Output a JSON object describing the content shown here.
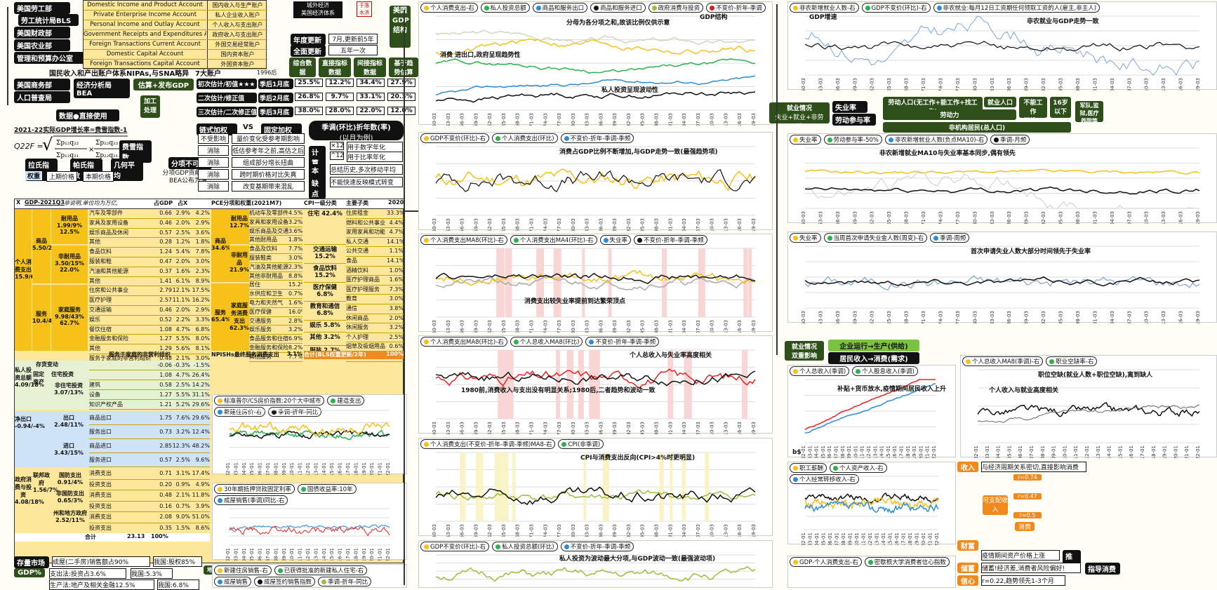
{
  "left_top": {
    "nav": [
      "美国劳工部",
      "劳工统计局BLS",
      "美国财政部",
      "美国农业部",
      "管理和预算办公室",
      "美国商务部",
      "经济分析局BEA",
      "人口普查局"
    ],
    "accounts_en": [
      "Domestic Income and Product Account",
      "Private Enterprise Income Account",
      "Personal Income and Outlay Account",
      "Government Receipts and Expenditures Account",
      "Foreign Transactions Current Account",
      "Domestic Capital Account",
      "Foreign Transactions Capital Account"
    ],
    "accounts_cn": [
      "国内收入与生产账户",
      "私人企业收入账户",
      "个人收入与支出账户",
      "政府收入与支出账户",
      "外国交易经常账户",
      "国内资本账户",
      "外国资本账户"
    ],
    "city_econ": "城外经济",
    "us_econ": "美国经济体系",
    "stamp": "于落水济",
    "nipa_label": "国民收入和产出账户体系NIPAs,与SNA略异",
    "seven_acct": "7大账户",
    "year1996": "1996后",
    "gdp_struct": "美国GDP结构",
    "annual_update": "年度更新",
    "annual_update_v": "7月,更新前5年",
    "full_update": "全面更新",
    "full_update_v": "五年一次",
    "cols": [
      "综合数据",
      "直接指标数据",
      "间接指标数据",
      "基于趋势估算数据"
    ],
    "estimate": "估算+发布GDP",
    "rows": [
      {
        "name": "初次估计/初值★★★",
        "time": "季后1月底",
        "v": [
          "25.5%",
          "12.2%",
          "34.4%",
          "27.9%"
        ]
      },
      {
        "name": "二次估计/修正值",
        "time": "季后2月底",
        "v": [
          "26.8%",
          "9.7%",
          "33.1%",
          "20.3%"
        ]
      },
      {
        "name": "三次估计/二次修正值",
        "time": "季后3月底",
        "v": [
          "38.0%",
          "28.0%",
          "22.0%",
          "12.0%"
        ]
      }
    ],
    "data_use": "数据●直接使用",
    "process": "加工处理"
  },
  "left_mid": {
    "formula_title": "2021-22实际GDP增长率=费雪指数-1",
    "formula_lhs": "Q22F =",
    "fisher": "费雪指数",
    "laspeyres": "拉氏指数",
    "paasche": "帕氏指数",
    "geo": "几何平均",
    "weights": "权重",
    "prev_price": "上期价格",
    "this_price": "本期价格",
    "chain": "链式加权",
    "vs": "VS",
    "fixed": "固定加权",
    "not_add": "分项不可加",
    "contrib": "分项GDP贡献率以BEA公布为准",
    "compare": [
      [
        "不受影响",
        "量价变化受参考期影响"
      ],
      [
        "消除",
        "低估参考年之前,高估之后"
      ],
      [
        "消除",
        "组成部分增长扭曲"
      ],
      [
        "消除",
        "跨时期价格对比失真"
      ],
      [
        "消除",
        "改变基期带来混乱"
      ]
    ],
    "seasonal": "季调(环比)折年数(率)",
    "seasonal_sub": "(以月为例)",
    "calc": "计算",
    "x12": "×12",
    "x12_v": "用于数字年化",
    "p12": "^12",
    "p12_v": "用于比率年化",
    "essence": "本质",
    "essence_v": "总结历史,多次移动平均",
    "defect": "缺点",
    "defect_v": "不能快速反映模式转变"
  },
  "left_table": {
    "hdr_x": "X",
    "hdr_gdp": "GDP-2021Q3",
    "hdr_note": "非说明,单位均为万亿,",
    "hdr_gdp_pct": "占GDP",
    "hdr_x_pct": "占X",
    "pce_hdr": "PCE分项和权重(2021M7)",
    "cpi_hdr": "CPI一级分类",
    "cpi_hdr2": "主要子类",
    "year": "2020",
    "consumption": "个人消费支出 15.9/69%",
    "goods": "商品 5.50/24%",
    "durable": "耐用品 1.99/9% 12.5%",
    "nondurable": "非耐用品 3.50/15% 22.0%",
    "services": "服务 10.4/45%",
    "household": "家庭服务 9.98/43% 62.7%",
    "nonprofit": "服务于家庭的非营利组织",
    "private_inv": "私人投资总额 4.09/18%",
    "fixed_inv": "固定资产",
    "inventory": "存货变动",
    "resid": "住宅投资",
    "nonresid": "非住宅投资 3.07/13%",
    "net_export": "净出口 -0.94/-4%",
    "export": "出口 2.48/11%",
    "import": "进口 3.43/15%",
    "gov": "政府消费与投资 4.08/18%",
    "federal": "联邦政府 1.56/7%",
    "defense": "国防支出 0.91/4%",
    "nondefense": "非国防支出 0.65/3%",
    "state": "州和地方政府 2.52/11%",
    "total": "合计",
    "total_v": "23.13",
    "total_pct": "100%",
    "items": [
      [
        "汽车及零部件",
        "0.66",
        "2.9%",
        "4.2%"
      ],
      [
        "家具及家用设备",
        "0.46",
        "2.0%",
        "2.9%"
      ],
      [
        "娱乐商品及休闲",
        "0.57",
        "2.5%",
        "3.6%"
      ],
      [
        "其他",
        "0.28",
        "1.2%",
        "1.8%"
      ],
      [
        "食品饮料",
        "1.24",
        "5.4%",
        "7.8%"
      ],
      [
        "服装和鞋",
        "0.47",
        "2.0%",
        "3.0%"
      ],
      [
        "汽油和其他能源",
        "0.37",
        "1.6%",
        "2.3%"
      ],
      [
        "其他",
        "1.41",
        "6.1%",
        "8.9%"
      ],
      [
        "住房和公共事业",
        "2.79",
        "12.1%",
        "17.5%"
      ],
      [
        "医疗护理",
        "2.57",
        "11.1%",
        "16.2%"
      ],
      [
        "交通运输",
        "0.46",
        "2.0%",
        "2.9%"
      ],
      [
        "娱乐",
        "0.52",
        "2.2%",
        "3.3%"
      ],
      [
        "餐饮住宿",
        "1.08",
        "4.7%",
        "6.8%"
      ],
      [
        "金融服务和保险",
        "1.27",
        "5.5%",
        "8.0%"
      ],
      [
        "其他",
        "1.29",
        "5.6%",
        "8.1%"
      ],
      [
        "服务于家庭的非营利组织",
        "0.48",
        "2.1%",
        "3.0%"
      ]
    ],
    "pce_items": [
      [
        "机动车及零部件",
        "4.5%"
      ],
      [
        "家具和家用设备",
        "3.2%"
      ],
      [
        "娱乐商品及交通工具",
        "3.6%"
      ],
      [
        "其他耐用品",
        "1.8%"
      ],
      [
        "食品及饮料",
        "7.7%"
      ],
      [
        "服装鞋类",
        "3.0%"
      ],
      [
        "汽油及其他能源",
        "2.3%"
      ],
      [
        "其他非耐用品",
        "8.8%"
      ],
      [
        "居住",
        "15.2%"
      ],
      [
        "水供应和卫生",
        "0.7%"
      ],
      [
        "电力和天然气",
        "1.6%"
      ],
      [
        "医疗保健",
        "16.0%"
      ],
      [
        "交通服务",
        "2.8%"
      ],
      [
        "娱乐服务",
        "3.2%"
      ],
      [
        "食品服务和住宿",
        "6.9%"
      ],
      [
        "金融服务和保险",
        "8.2%"
      ],
      [
        "其他服务",
        "7.7%"
      ]
    ],
    "pce_goods": "商品 34.6%",
    "pce_durable": "耐用品 12.7%",
    "pce_nondurable": "非耐用品 21.9%",
    "pce_services": "服务 65.4%",
    "pce_household": "家庭服务消费支出 62.3%",
    "pce_npish": "NPISHs最终服务消费支出",
    "pce_npish_v": "3.1%",
    "cpi_cats": [
      [
        "住宅 42.4%"
      ],
      [
        "交通运输 15.2%"
      ],
      [
        "食品饮料 15.2%"
      ],
      [
        "医疗保健 6.8%"
      ],
      [
        "教育和通信 6.8%"
      ],
      [
        "娱乐 5.8%"
      ],
      [
        "其他 3.2%"
      ],
      [
        "服装 2.7%"
      ]
    ],
    "cpi_sub": [
      [
        "住房租金",
        "33.3%"
      ],
      [
        "燃料和公共事业",
        "4.4%"
      ],
      [
        "家用家具和功能",
        "4.7%"
      ],
      [
        "私人交通",
        "14.1%"
      ],
      [
        "公共交通",
        "1.1%"
      ],
      [
        "食品",
        "14.1%"
      ],
      [
        "酒精饮料",
        "1.0%"
      ],
      [
        "医疗护理商品",
        "1.6%"
      ],
      [
        "医疗护理服务",
        "7.3%"
      ],
      [
        "教育",
        "3.0%"
      ],
      [
        "通信",
        "3.8%"
      ],
      [
        "休闲商品",
        "2.0%"
      ],
      [
        "休闲服务",
        "3.2%"
      ],
      [
        "个人护理",
        "2.5%"
      ],
      [
        "烟草及吸烟用品",
        "0.6%"
      ],
      [
        "服装鞋类",
        "2.7%"
      ]
    ],
    "cpi_total": "合计(BLS权重更新/2年)",
    "cpi_total_v": "100%",
    "inv_items": [
      [
        "建筑",
        "0.58",
        "2.5%",
        "14.2%"
      ],
      [
        "设备",
        "1.27",
        "5.5%",
        "31.1%"
      ],
      [
        "知识产权产品",
        "1.21",
        "5.2%",
        "29.6%"
      ]
    ],
    "inv_top": [
      [
        "",
        "-0.06",
        "-0.3%",
        "-1.5%"
      ],
      [
        "",
        "1.08",
        "4.7%",
        "26.4%"
      ]
    ],
    "trade_items": [
      [
        "商品出口",
        "1.75",
        "7.6%",
        "29.6%"
      ],
      [
        "服务出口",
        "0.73",
        "3.2%",
        "12.4%"
      ],
      [
        "商品进口",
        "2.85",
        "12.3%",
        "48.2%"
      ],
      [
        "服务进口",
        "0.57",
        "2.5%",
        "9.6%"
      ]
    ],
    "gov_items": [
      [
        "消费支出",
        "0.71",
        "3.1%",
        "17.4%"
      ],
      [
        "投资支出",
        "0.20",
        "0.9%",
        "4.9%"
      ],
      [
        "消费支出",
        "0.48",
        "2.1%",
        "11.8%"
      ],
      [
        "投资支出",
        "0.16",
        "0.7%",
        "3.9%"
      ],
      [
        "消费支出",
        "2.08",
        "9.0%",
        "51.0%"
      ],
      [
        "投资支出",
        "0.35",
        "1.5%",
        "8.6%"
      ]
    ]
  },
  "left_bottom": {
    "housing": "存量市场",
    "housing_v": "成屋(二手房)销售额占90%",
    "china": "我国:股权85%",
    "gdp_pct": "GDP%",
    "gdp_pct_v": "支出法:投资占3.6%",
    "china2": "我国:5.3%",
    "prod": "生产法:地产及相关金融12.5%",
    "china3": "我国:6.8%",
    "real_estate": "地产"
  },
  "charts": {
    "c1": {
      "legend": [
        "个人消费支出-右",
        "私人投资总额",
        "商品和服务出口",
        "商品和服务进口",
        "政府消费与投资",
        "不变价-折年-季调"
      ],
      "title": "分母为各分项之和,故该比例仅供示意",
      "note1": "消费 进出口,政府呈现趋势性",
      "note2": "私人投资呈现波动性",
      "tag": "GDP结构",
      "y_right": [
        "72%",
        "67%",
        "62%",
        "57%",
        "52%"
      ],
      "y_left": [
        "37%",
        "32%",
        "27%",
        "22%",
        "17%",
        "12%",
        "7%",
        "2%"
      ]
    },
    "c2": {
      "legend": [
        "GDP不变价(环比)-右",
        "个人消费支出(环比)",
        "不变价-折年-季调-季频"
      ],
      "title": "消费占GDP比例不断增加,与GDP走势一致(最强趋势项)"
    },
    "c3": {
      "legend": [
        "个人消费支出MA8(环比)-右",
        "个人消费支出MA4(环比)-右",
        "失业率",
        "不变价-折年-季调-季频"
      ],
      "title": "消费支出较失业率提前到达繁荣顶点"
    },
    "c4": {
      "legend": [
        "个人消费支出MA8(环比)-右",
        "个人总收入MA8(环比)",
        "不变价-折年-季调-季频"
      ],
      "title": "个人总收入与失业率高度相关",
      "note": "1980前,消费收入与支出没有明显关系;1980后,二者趋势和波动一致"
    },
    "c5": {
      "legend": [
        "个人消费支出(不变价-折年-季调-季频)MA8-右",
        "CPI(非季调)"
      ],
      "title": "CPI与消费支出反向(CPI>4%时更明显)"
    },
    "c6": {
      "legend": [
        "GDP不变价(环比)-右",
        "私人投资总额(环比)",
        "不变价-折年-季调-季频"
      ],
      "title": "私人投资为波动最大分项,与GDP波动一致(最强波动项)"
    },
    "h1": {
      "legend": [
        "标准普尔/CS房价指数:20个大中城市",
        "建造支出",
        "新建住房价-右",
        "季调-折年-同比"
      ]
    },
    "h2": {
      "legend": [
        "30年期抵押贷款固定利率",
        "国债收益率:10年",
        "成屋销售(季调)同比-右"
      ]
    },
    "h3": {
      "legend": [
        "新建住房销售-右",
        "已获得批准的新建私人住宅-右",
        "成屋销售",
        "成屋签约销售指数",
        "季调-折年-同比"
      ]
    },
    "r1": {
      "legend": [
        "非农新增就业人数-右",
        "GDP不变价(环比)-右",
        "非农就业:每月12日工资期任何领取工资的人(雇主,非主人)"
      ],
      "title": "非农就业与GDP走势一致",
      "tag": "GDP增速"
    },
    "r2": {
      "legend": [
        "失业率",
        "劳动参与率-50%",
        "非农新增就业人数(负点MA10)-右",
        "季调-月频"
      ],
      "title": "非农新增就业MA10与失业率基本同步,偶有领先"
    },
    "r3": {
      "legend": [
        "失业率",
        "当周首次申请失业金人数(周变)-右",
        "季调-周频"
      ],
      "title": "首次申请失业人数大部分时间领先于失业率"
    },
    "r4": {
      "legend": [
        "个人总收入(季调)",
        "个人股息收入(季调)"
      ],
      "note": "补贴+货币放水,疫情期间居民收入上升",
      "unit": "b$"
    },
    "r5": {
      "legend": [
        "个人总收入MA8(季调)-右",
        "职业空缺率-右"
      ],
      "title": "职位空缺(就业人数+职位空缺),离到缺人",
      "note": "个人收入与就业高度相关"
    },
    "r6": {
      "legend": [
        "职工薪酬",
        "个人资产收入-右",
        "个人经常转移收入-右"
      ]
    },
    "r7": {
      "legend": [
        "GDP-个人消费支出-右",
        "密歇根大学消费者信心指数"
      ]
    }
  },
  "right_panel": {
    "employment": "就业情况",
    "emp_formula": "失业+就业+非劳动",
    "unemp_rate": "失业率",
    "labor_part": "劳动参与率",
    "labor_pop": "劳动人口(无工作+能工作+找工作)",
    "emp_pop": "就业人口",
    "cant_work": "不能工作",
    "no_seek": "不找工作",
    "age16": "16岁以下",
    "military": "军队,监狱,医疗养院等",
    "labor": "劳动力",
    "non_inst": "非机构居民(总人口)",
    "emp2": "就业情况",
    "double": "双重影响",
    "enterprise": "企业运行→生产(供给)",
    "income_demand": "居民收入→消费(需求)",
    "income": "收入",
    "income_note": "与经济周期关系密切,直接影响消费",
    "wealth": "财富",
    "asset": "疫情期间资产价格上涨",
    "push": "推荐",
    "saving": "储蓄",
    "saving_v": "储蓄!经济差,消费者风险偏好!",
    "confidence": "信心",
    "conf_v": "r=0.22,趋势领先1-3个月",
    "r_vals": [
      "r=0.74",
      "r=0.47",
      "r=0.5"
    ],
    "disposable": "可支配收入",
    "consumption": "消费",
    "index_mgmt": "指导消费"
  }
}
